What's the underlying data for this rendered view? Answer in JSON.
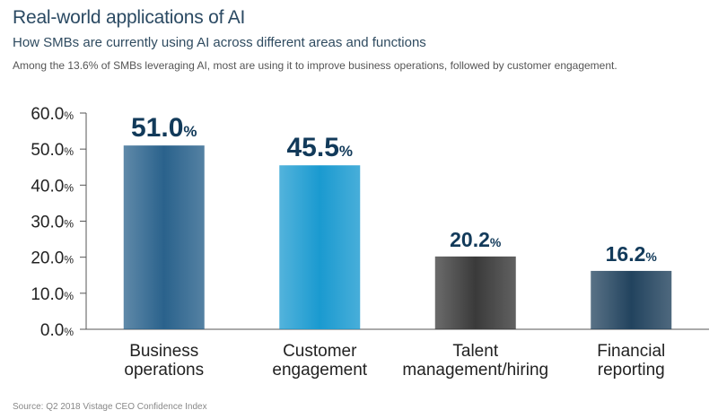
{
  "page": {
    "title": "Real-world applications of AI",
    "subtitle": "How SMBs are currently using AI across different areas and functions",
    "note": "Among the 13.6% of SMBs leveraging AI, most are using it to improve business operations, followed by customer engagement.",
    "source": "Source: Q2 2018 Vistage CEO Confidence Index"
  },
  "colors": {
    "title": "#2b4a63",
    "value_label": "#123a5a"
  },
  "chart_data": {
    "type": "bar",
    "categories": [
      [
        "Business",
        "operations"
      ],
      [
        "Customer",
        "engagement"
      ],
      [
        "Talent",
        "management/hiring"
      ],
      [
        "Financial",
        "reporting"
      ]
    ],
    "values": [
      51.0,
      45.5,
      20.2,
      16.2
    ],
    "value_labels": [
      "51.0",
      "45.5",
      "20.2",
      "16.2"
    ],
    "value_suffix": "%",
    "bar_colors": [
      "#2a628c",
      "#1a9ad0",
      "#3a3a3a",
      "#22435e"
    ],
    "ylim": [
      0,
      60
    ],
    "yticks": [
      "0.0",
      "10.0",
      "20.0",
      "30.0",
      "40.0",
      "50.0",
      "60.0"
    ],
    "ytick_suffix": "%",
    "grid": false
  }
}
